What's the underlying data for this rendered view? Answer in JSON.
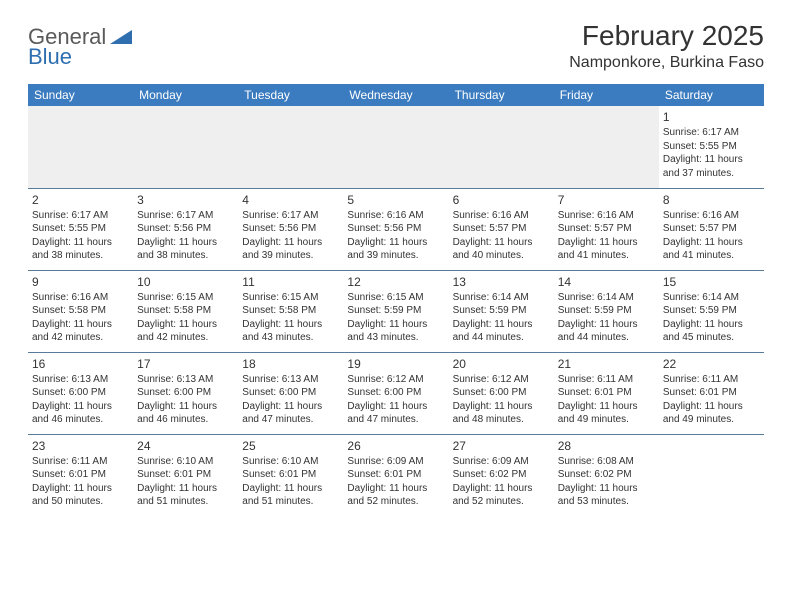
{
  "logo": {
    "word1": "General",
    "word2": "Blue"
  },
  "title": "February 2025",
  "location": "Namponkore, Burkina Faso",
  "colors": {
    "header_bg": "#3b7bbf",
    "header_text": "#ffffff",
    "rule": "#5a7a9a",
    "logo_gray": "#5a5a5a",
    "logo_blue": "#2f6fb0",
    "text": "#333333",
    "empty_bg": "#efefef"
  },
  "weekdays": [
    "Sunday",
    "Monday",
    "Tuesday",
    "Wednesday",
    "Thursday",
    "Friday",
    "Saturday"
  ],
  "weeks": [
    [
      null,
      null,
      null,
      null,
      null,
      null,
      {
        "n": "1",
        "sunrise": "6:17 AM",
        "sunset": "5:55 PM",
        "daylight": "11 hours and 37 minutes."
      }
    ],
    [
      {
        "n": "2",
        "sunrise": "6:17 AM",
        "sunset": "5:55 PM",
        "daylight": "11 hours and 38 minutes."
      },
      {
        "n": "3",
        "sunrise": "6:17 AM",
        "sunset": "5:56 PM",
        "daylight": "11 hours and 38 minutes."
      },
      {
        "n": "4",
        "sunrise": "6:17 AM",
        "sunset": "5:56 PM",
        "daylight": "11 hours and 39 minutes."
      },
      {
        "n": "5",
        "sunrise": "6:16 AM",
        "sunset": "5:56 PM",
        "daylight": "11 hours and 39 minutes."
      },
      {
        "n": "6",
        "sunrise": "6:16 AM",
        "sunset": "5:57 PM",
        "daylight": "11 hours and 40 minutes."
      },
      {
        "n": "7",
        "sunrise": "6:16 AM",
        "sunset": "5:57 PM",
        "daylight": "11 hours and 41 minutes."
      },
      {
        "n": "8",
        "sunrise": "6:16 AM",
        "sunset": "5:57 PM",
        "daylight": "11 hours and 41 minutes."
      }
    ],
    [
      {
        "n": "9",
        "sunrise": "6:16 AM",
        "sunset": "5:58 PM",
        "daylight": "11 hours and 42 minutes."
      },
      {
        "n": "10",
        "sunrise": "6:15 AM",
        "sunset": "5:58 PM",
        "daylight": "11 hours and 42 minutes."
      },
      {
        "n": "11",
        "sunrise": "6:15 AM",
        "sunset": "5:58 PM",
        "daylight": "11 hours and 43 minutes."
      },
      {
        "n": "12",
        "sunrise": "6:15 AM",
        "sunset": "5:59 PM",
        "daylight": "11 hours and 43 minutes."
      },
      {
        "n": "13",
        "sunrise": "6:14 AM",
        "sunset": "5:59 PM",
        "daylight": "11 hours and 44 minutes."
      },
      {
        "n": "14",
        "sunrise": "6:14 AM",
        "sunset": "5:59 PM",
        "daylight": "11 hours and 44 minutes."
      },
      {
        "n": "15",
        "sunrise": "6:14 AM",
        "sunset": "5:59 PM",
        "daylight": "11 hours and 45 minutes."
      }
    ],
    [
      {
        "n": "16",
        "sunrise": "6:13 AM",
        "sunset": "6:00 PM",
        "daylight": "11 hours and 46 minutes."
      },
      {
        "n": "17",
        "sunrise": "6:13 AM",
        "sunset": "6:00 PM",
        "daylight": "11 hours and 46 minutes."
      },
      {
        "n": "18",
        "sunrise": "6:13 AM",
        "sunset": "6:00 PM",
        "daylight": "11 hours and 47 minutes."
      },
      {
        "n": "19",
        "sunrise": "6:12 AM",
        "sunset": "6:00 PM",
        "daylight": "11 hours and 47 minutes."
      },
      {
        "n": "20",
        "sunrise": "6:12 AM",
        "sunset": "6:00 PM",
        "daylight": "11 hours and 48 minutes."
      },
      {
        "n": "21",
        "sunrise": "6:11 AM",
        "sunset": "6:01 PM",
        "daylight": "11 hours and 49 minutes."
      },
      {
        "n": "22",
        "sunrise": "6:11 AM",
        "sunset": "6:01 PM",
        "daylight": "11 hours and 49 minutes."
      }
    ],
    [
      {
        "n": "23",
        "sunrise": "6:11 AM",
        "sunset": "6:01 PM",
        "daylight": "11 hours and 50 minutes."
      },
      {
        "n": "24",
        "sunrise": "6:10 AM",
        "sunset": "6:01 PM",
        "daylight": "11 hours and 51 minutes."
      },
      {
        "n": "25",
        "sunrise": "6:10 AM",
        "sunset": "6:01 PM",
        "daylight": "11 hours and 51 minutes."
      },
      {
        "n": "26",
        "sunrise": "6:09 AM",
        "sunset": "6:01 PM",
        "daylight": "11 hours and 52 minutes."
      },
      {
        "n": "27",
        "sunrise": "6:09 AM",
        "sunset": "6:02 PM",
        "daylight": "11 hours and 52 minutes."
      },
      {
        "n": "28",
        "sunrise": "6:08 AM",
        "sunset": "6:02 PM",
        "daylight": "11 hours and 53 minutes."
      },
      null
    ]
  ],
  "labels": {
    "sunrise": "Sunrise:",
    "sunset": "Sunset:",
    "daylight": "Daylight:"
  }
}
